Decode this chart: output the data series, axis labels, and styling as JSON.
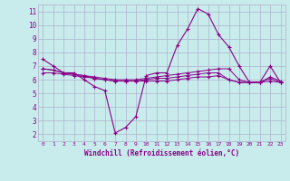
{
  "xlabel": "Windchill (Refroidissement éolien,°C)",
  "background_color": "#c8ecec",
  "grid_color": "#b0b0cc",
  "line_color": "#880088",
  "xlim": [
    -0.5,
    23.5
  ],
  "ylim": [
    1.5,
    11.5
  ],
  "xticks": [
    0,
    1,
    2,
    3,
    4,
    5,
    6,
    7,
    8,
    9,
    10,
    11,
    12,
    13,
    14,
    15,
    16,
    17,
    18,
    19,
    20,
    21,
    22,
    23
  ],
  "yticks": [
    2,
    3,
    4,
    5,
    6,
    7,
    8,
    9,
    10,
    11
  ],
  "line1_x": [
    0,
    1,
    2,
    3,
    4,
    5,
    6,
    7,
    8,
    9,
    10,
    11,
    12,
    13,
    14,
    15,
    16,
    17,
    18,
    19,
    20,
    21,
    22,
    23
  ],
  "line1_y": [
    7.5,
    7.0,
    6.5,
    6.5,
    6.0,
    5.5,
    5.2,
    2.1,
    2.5,
    3.3,
    6.3,
    6.5,
    6.5,
    8.5,
    9.7,
    11.2,
    10.8,
    9.3,
    8.4,
    7.0,
    5.8,
    5.8,
    7.0,
    5.8
  ],
  "line2_x": [
    0,
    1,
    2,
    3,
    4,
    5,
    6,
    7,
    8,
    9,
    10,
    11,
    12,
    13,
    14,
    15,
    16,
    17,
    18,
    19,
    20,
    21,
    22,
    23
  ],
  "line2_y": [
    6.8,
    6.7,
    6.5,
    6.4,
    6.3,
    6.2,
    6.1,
    6.0,
    6.0,
    6.0,
    6.1,
    6.2,
    6.3,
    6.4,
    6.5,
    6.6,
    6.7,
    6.8,
    6.8,
    6.0,
    5.8,
    5.8,
    6.2,
    5.9
  ],
  "line3_x": [
    0,
    1,
    2,
    3,
    4,
    5,
    6,
    7,
    8,
    9,
    10,
    11,
    12,
    13,
    14,
    15,
    16,
    17,
    18,
    19,
    20,
    21,
    22,
    23
  ],
  "line3_y": [
    6.5,
    6.5,
    6.4,
    6.3,
    6.2,
    6.1,
    6.0,
    5.9,
    5.9,
    5.9,
    5.9,
    5.9,
    5.9,
    6.0,
    6.1,
    6.2,
    6.2,
    6.3,
    6.0,
    5.8,
    5.8,
    5.8,
    5.9,
    5.8
  ],
  "line4_x": [
    0,
    1,
    2,
    3,
    4,
    5,
    6,
    7,
    8,
    9,
    10,
    11,
    12,
    13,
    14,
    15,
    16,
    17,
    18,
    19,
    20,
    21,
    22,
    23
  ],
  "line4_y": [
    6.8,
    6.7,
    6.5,
    6.4,
    6.3,
    6.1,
    6.0,
    5.9,
    5.9,
    5.9,
    6.0,
    6.1,
    6.1,
    6.2,
    6.3,
    6.4,
    6.5,
    6.5,
    6.0,
    5.8,
    5.8,
    5.8,
    6.1,
    5.8
  ]
}
